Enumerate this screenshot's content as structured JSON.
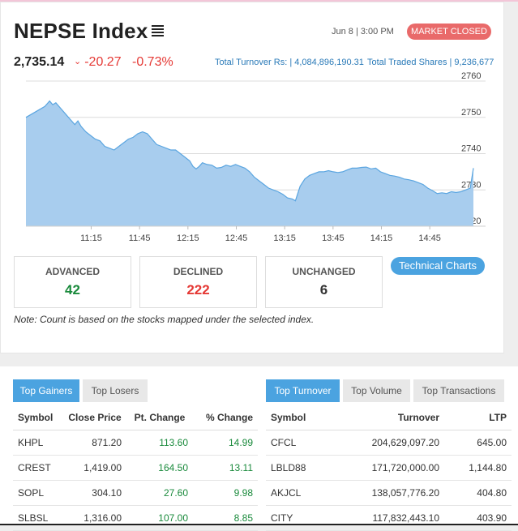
{
  "header": {
    "title": "NEPSE Index",
    "date": "Jun 8 | 3:00 PM",
    "status": "MARKET CLOSED"
  },
  "index": {
    "value": "2,735.14",
    "change": "-20.27",
    "percent": "-0.73%",
    "turnover": "Total Turnover Rs: | 4,084,896,190.31",
    "shares": "Total Traded Shares | 9,236,677"
  },
  "colors": {
    "accent": "#4ba3e0",
    "up": "#1a8a3c",
    "down": "#e53935",
    "status": "#e96a6a",
    "area": "#a8cdee",
    "line": "#5aa5e0"
  },
  "chart_data": {
    "type": "area",
    "x_ticks": [
      "11:15",
      "11:45",
      "12:15",
      "12:45",
      "13:15",
      "13:45",
      "14:15",
      "14:45"
    ],
    "y_ticks": [
      "2760",
      "2750",
      "2740",
      "2730",
      "2720"
    ],
    "ylim": [
      2720,
      2760
    ],
    "xlim_minutes": [
      0,
      252
    ],
    "points": [
      [
        0,
        2750.0
      ],
      [
        4,
        2751.0
      ],
      [
        8,
        2752.0
      ],
      [
        12,
        2753.0
      ],
      [
        15,
        2754.5
      ],
      [
        17,
        2753.5
      ],
      [
        19,
        2754.0
      ],
      [
        22,
        2752.5
      ],
      [
        25,
        2751.0
      ],
      [
        28,
        2749.5
      ],
      [
        31,
        2748.0
      ],
      [
        33,
        2749.0
      ],
      [
        35,
        2747.5
      ],
      [
        38,
        2746.0
      ],
      [
        41,
        2745.0
      ],
      [
        44,
        2744.0
      ],
      [
        47,
        2743.5
      ],
      [
        50,
        2742.0
      ],
      [
        53,
        2741.5
      ],
      [
        56,
        2741.0
      ],
      [
        59,
        2742.0
      ],
      [
        62,
        2743.0
      ],
      [
        65,
        2744.0
      ],
      [
        68,
        2744.5
      ],
      [
        71,
        2745.5
      ],
      [
        74,
        2746.0
      ],
      [
        77,
        2745.5
      ],
      [
        80,
        2744.0
      ],
      [
        83,
        2742.5
      ],
      [
        86,
        2742.0
      ],
      [
        89,
        2741.5
      ],
      [
        92,
        2741.0
      ],
      [
        95,
        2741.0
      ],
      [
        98,
        2740.0
      ],
      [
        101,
        2739.0
      ],
      [
        104,
        2738.0
      ],
      [
        106,
        2736.5
      ],
      [
        108,
        2735.8
      ],
      [
        110,
        2736.5
      ],
      [
        112,
        2737.5
      ],
      [
        115,
        2737.0
      ],
      [
        118,
        2736.8
      ],
      [
        121,
        2736.0
      ],
      [
        124,
        2736.2
      ],
      [
        127,
        2736.8
      ],
      [
        130,
        2736.5
      ],
      [
        133,
        2737.0
      ],
      [
        136,
        2736.5
      ],
      [
        139,
        2736.0
      ],
      [
        142,
        2735.0
      ],
      [
        145,
        2733.5
      ],
      [
        148,
        2732.5
      ],
      [
        151,
        2731.5
      ],
      [
        154,
        2730.5
      ],
      [
        157,
        2730.0
      ],
      [
        160,
        2729.5
      ],
      [
        163,
        2728.8
      ],
      [
        166,
        2727.8
      ],
      [
        169,
        2727.5
      ],
      [
        171,
        2727.0
      ],
      [
        174,
        2731.0
      ],
      [
        177,
        2733.0
      ],
      [
        180,
        2734.0
      ],
      [
        183,
        2734.5
      ],
      [
        186,
        2735.0
      ],
      [
        189,
        2735.0
      ],
      [
        192,
        2735.3
      ],
      [
        195,
        2735.0
      ],
      [
        198,
        2734.8
      ],
      [
        201,
        2735.0
      ],
      [
        204,
        2735.5
      ],
      [
        207,
        2736.0
      ],
      [
        210,
        2736.0
      ],
      [
        213,
        2736.2
      ],
      [
        216,
        2736.3
      ],
      [
        219,
        2735.8
      ],
      [
        222,
        2736.0
      ],
      [
        225,
        2735.0
      ],
      [
        228,
        2734.5
      ],
      [
        231,
        2734.0
      ],
      [
        234,
        2733.8
      ],
      [
        237,
        2733.5
      ],
      [
        240,
        2733.0
      ],
      [
        243,
        2732.8
      ],
      [
        246,
        2732.5
      ],
      [
        249,
        2732.0
      ],
      [
        252,
        2731.5
      ],
      [
        255,
        2730.5
      ],
      [
        258,
        2729.8
      ],
      [
        261,
        2729.0
      ],
      [
        264,
        2729.2
      ],
      [
        267,
        2729.0
      ],
      [
        270,
        2729.5
      ],
      [
        273,
        2729.3
      ],
      [
        276,
        2729.5
      ],
      [
        279,
        2730.0
      ],
      [
        282,
        2730.5
      ],
      [
        284,
        2736.0
      ]
    ]
  },
  "stats": {
    "advanced_label": "ADVANCED",
    "advanced": "42",
    "declined_label": "DECLINED",
    "declined": "222",
    "unchanged_label": "UNCHANGED",
    "unchanged": "6"
  },
  "tech_button": "Technical Charts",
  "note": "Note: Count is based on the stocks mapped under the selected index.",
  "left_panel": {
    "tabs": [
      "Top Gainers",
      "Top Losers"
    ],
    "headers": [
      "Symbol",
      "Close Price",
      "Pt. Change",
      "% Change"
    ],
    "rows": [
      [
        "KHPL",
        "871.20",
        "113.60",
        "14.99"
      ],
      [
        "CREST",
        "1,419.00",
        "164.50",
        "13.11"
      ],
      [
        "SOPL",
        "304.10",
        "27.60",
        "9.98"
      ],
      [
        "SLBSL",
        "1,316.00",
        "107.00",
        "8.85"
      ]
    ]
  },
  "right_panel": {
    "tabs": [
      "Top Turnover",
      "Top Volume",
      "Top Transactions"
    ],
    "headers": [
      "Symbol",
      "Turnover",
      "LTP"
    ],
    "rows": [
      [
        "CFCL",
        "204,629,097.20",
        "645.00"
      ],
      [
        "LBLD88",
        "171,720,000.00",
        "1,144.80"
      ],
      [
        "AKJCL",
        "138,057,776.20",
        "404.80"
      ],
      [
        "CITY",
        "117,832,443.10",
        "403.90"
      ]
    ]
  }
}
